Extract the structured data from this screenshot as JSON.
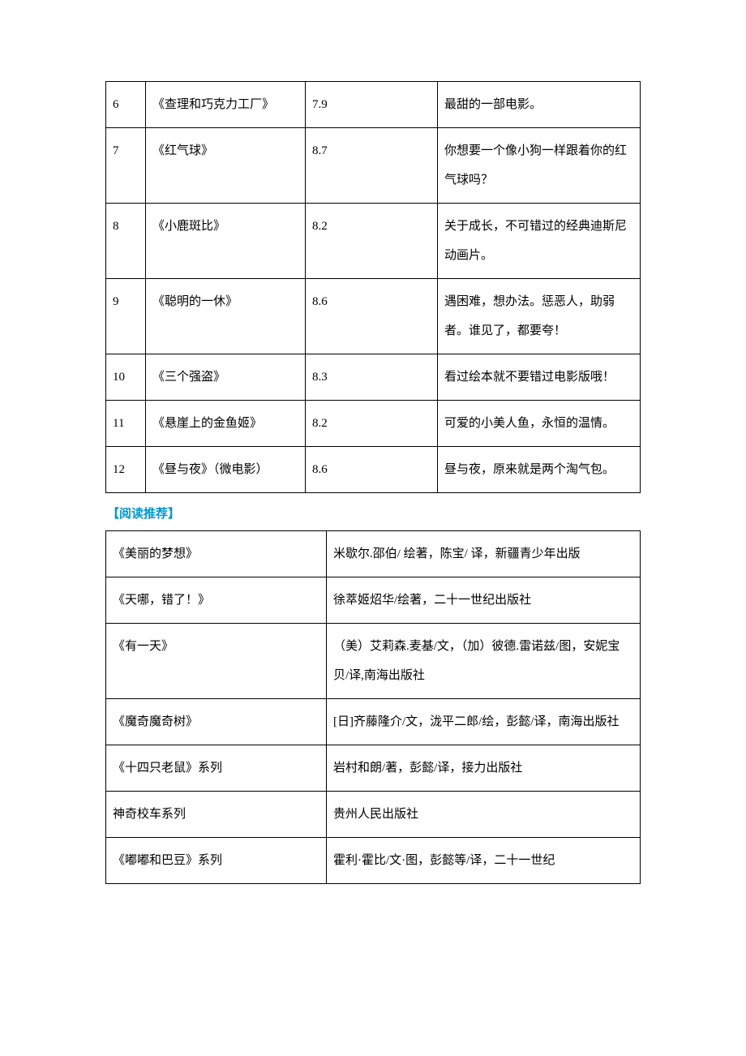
{
  "movies_table": {
    "col_widths": [
      "49px",
      "197px",
      "163px",
      "auto"
    ],
    "rows": [
      {
        "num": "6",
        "title": "《查理和巧克力工厂》",
        "score": "7.9",
        "desc": "最甜的一部电影。"
      },
      {
        "num": "7",
        "title": "《红气球》",
        "score": "8.7",
        "desc": "你想要一个像小狗一样跟着你的红气球吗？"
      },
      {
        "num": "8",
        "title": "《小鹿斑比》",
        "score": "8.2",
        "desc": "关于成长，不可错过的经典迪斯尼动画片。"
      },
      {
        "num": "9",
        "title": "《聪明的一休》",
        "score": "8.6",
        "desc": "遇困难，想办法。惩恶人，助弱者。谁见了，都要夸！"
      },
      {
        "num": "10",
        "title": "《三个强盗》",
        "score": "8.3",
        "desc": "看过绘本就不要错过电影版哦！"
      },
      {
        "num": "11",
        "title": "《悬崖上的金鱼姬》",
        "score": "8.2",
        "desc": "可爱的小美人鱼，永恒的温情。"
      },
      {
        "num": "12",
        "title": "《昼与夜》（微电影）",
        "score": "8.6",
        "desc": "昼与夜，原来就是两个淘气包。"
      }
    ]
  },
  "section_heading": "【阅读推荐】",
  "section_heading_color": "#0099cc",
  "books_table": {
    "col_widths": [
      "272px",
      "auto"
    ],
    "rows": [
      {
        "title": "《美丽的梦想》",
        "info": "米歇尔.邵伯/ 绘著，陈宝/ 译，新疆青少年出版"
      },
      {
        "title": "《天哪，错了！》",
        "info": "徐萃姬炤华/绘著，二十一世纪出版社"
      },
      {
        "title": "《有一天》",
        "info": "（美）艾莉森.麦基/文，（加）彼德.雷诺兹/图，安妮宝贝/译,南海出版社"
      },
      {
        "title": "《魔奇魔奇树》",
        "info": "[日]齐藤隆介/文，泷平二郎/绘，彭懿/译，南海出版社"
      },
      {
        "title": "《十四只老鼠》系列",
        "info": "岩村和朗/著，彭懿/译，接力出版社"
      },
      {
        "title": "神奇校车系列",
        "info": "贵州人民出版社"
      },
      {
        "title": "《嘟嘟和巴豆》系列",
        "info": "霍利·霍比/文·图，彭懿等/译，二十一世纪"
      }
    ]
  }
}
